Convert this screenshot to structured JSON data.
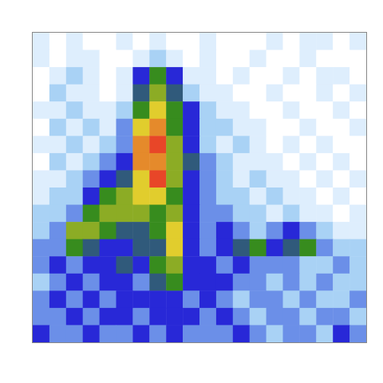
{
  "chart_data": {
    "type": "heatmap",
    "tick_labels": false,
    "cells": [
      [
        1,
        0,
        1,
        0,
        0,
        1,
        0,
        1,
        0,
        0,
        1,
        0,
        0,
        0,
        1,
        0,
        1,
        1,
        0,
        1
      ],
      [
        1,
        0,
        1,
        1,
        0,
        0,
        1,
        2,
        1,
        0,
        1,
        0,
        0,
        1,
        0,
        0,
        1,
        0,
        0,
        0
      ],
      [
        0,
        1,
        2,
        1,
        0,
        1,
        4,
        6,
        4,
        1,
        1,
        0,
        1,
        0,
        0,
        1,
        0,
        1,
        1,
        0
      ],
      [
        0,
        2,
        1,
        1,
        0,
        1,
        5,
        7,
        5,
        2,
        1,
        1,
        0,
        0,
        1,
        0,
        0,
        1,
        0,
        1
      ],
      [
        1,
        1,
        2,
        1,
        1,
        2,
        6,
        8,
        6,
        4,
        2,
        1,
        1,
        0,
        0,
        1,
        0,
        0,
        1,
        0
      ],
      [
        0,
        2,
        1,
        2,
        1,
        3,
        8,
        9,
        6,
        4,
        2,
        2,
        1,
        1,
        0,
        0,
        1,
        0,
        0,
        1
      ],
      [
        1,
        1,
        2,
        1,
        2,
        3,
        9,
        10,
        7,
        4,
        2,
        1,
        2,
        1,
        0,
        1,
        0,
        1,
        0,
        0
      ],
      [
        0,
        2,
        1,
        2,
        3,
        4,
        9,
        9,
        7,
        5,
        3,
        2,
        1,
        1,
        1,
        0,
        1,
        0,
        1,
        0
      ],
      [
        1,
        1,
        2,
        3,
        4,
        5,
        8,
        10,
        7,
        4,
        3,
        2,
        1,
        2,
        1,
        1,
        0,
        1,
        0,
        1
      ],
      [
        1,
        2,
        2,
        4,
        6,
        7,
        8,
        8,
        6,
        4,
        3,
        2,
        2,
        1,
        2,
        1,
        1,
        0,
        1,
        0
      ],
      [
        2,
        2,
        3,
        6,
        7,
        7,
        7,
        6,
        7,
        4,
        3,
        3,
        2,
        2,
        1,
        2,
        1,
        1,
        0,
        1
      ],
      [
        2,
        3,
        7,
        7,
        6,
        5,
        5,
        6,
        8,
        4,
        3,
        4,
        3,
        2,
        3,
        4,
        3,
        2,
        1,
        1
      ],
      [
        3,
        3,
        6,
        5,
        4,
        4,
        5,
        5,
        8,
        4,
        3,
        4,
        5,
        6,
        4,
        5,
        6,
        3,
        2,
        2
      ],
      [
        3,
        4,
        3,
        4,
        4,
        5,
        4,
        6,
        7,
        4,
        4,
        3,
        4,
        3,
        3,
        3,
        2,
        2,
        3,
        2
      ],
      [
        2,
        3,
        4,
        3,
        4,
        4,
        3,
        5,
        6,
        4,
        4,
        4,
        3,
        3,
        2,
        3,
        2,
        3,
        2,
        2
      ],
      [
        3,
        4,
        3,
        4,
        3,
        4,
        4,
        4,
        4,
        3,
        4,
        3,
        2,
        3,
        3,
        2,
        3,
        2,
        2,
        3
      ],
      [
        3,
        3,
        4,
        3,
        4,
        4,
        3,
        4,
        4,
        4,
        3,
        4,
        3,
        2,
        3,
        3,
        2,
        3,
        3,
        2
      ],
      [
        4,
        3,
        3,
        4,
        3,
        3,
        4,
        3,
        4,
        3,
        3,
        3,
        4,
        3,
        2,
        3,
        3,
        2,
        4,
        3
      ]
    ]
  }
}
